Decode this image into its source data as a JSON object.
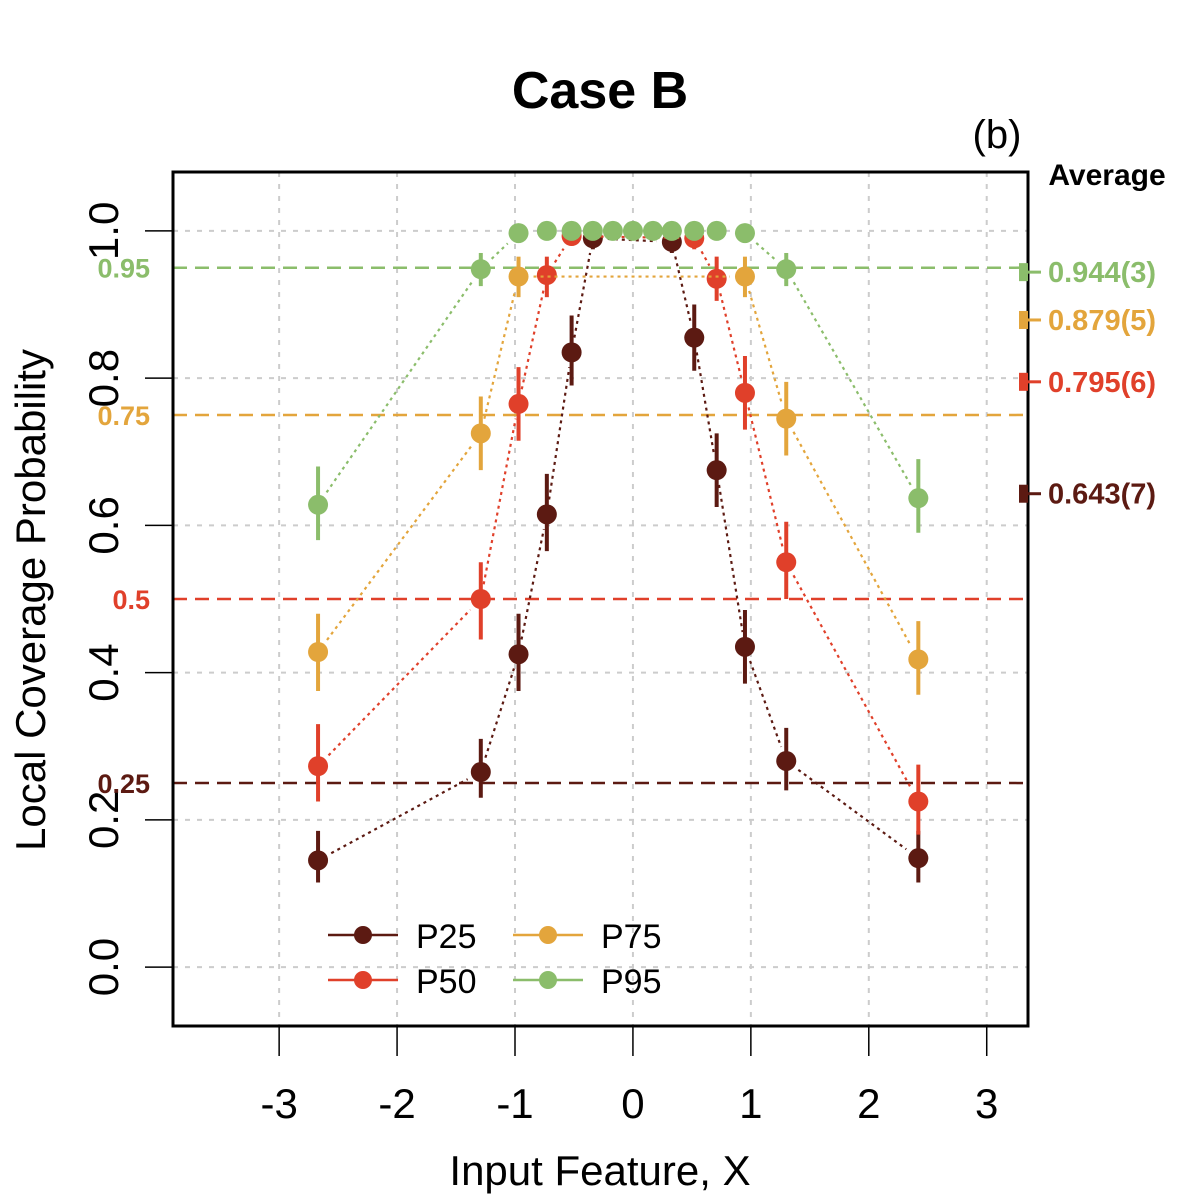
{
  "chart_data": {
    "type": "scatter",
    "title": "Case B",
    "panel_label": "(b)",
    "xlabel": "Input Feature, X",
    "ylabel": "Local Coverage Probability",
    "xlim": [
      -3.9,
      3.35
    ],
    "ylim": [
      -0.08,
      1.08
    ],
    "x_ticks": [
      -3,
      -2,
      -1,
      0,
      1,
      2,
      3
    ],
    "x_tick_labels": [
      "-3",
      "-2",
      "-1",
      "0",
      "1",
      "2",
      "3"
    ],
    "y_ticks": [
      0.0,
      0.2,
      0.4,
      0.6,
      0.8,
      1.0
    ],
    "y_tick_labels": [
      "0.0",
      "0.2",
      "0.4",
      "0.6",
      "0.8",
      "1.0"
    ],
    "grid": true,
    "average_header": "Average",
    "legend_position": "bottom-left",
    "series": [
      {
        "name": "P25",
        "color": "#5c1a12",
        "nominal": 0.25,
        "nominal_label": "0.25",
        "average": 0.643,
        "average_label": "0.643(7)",
        "points": [
          {
            "x": -2.67,
            "y": 0.145,
            "lo": 0.115,
            "hi": 0.185
          },
          {
            "x": -1.29,
            "y": 0.265,
            "lo": 0.23,
            "hi": 0.31
          },
          {
            "x": -0.97,
            "y": 0.425,
            "lo": 0.375,
            "hi": 0.48
          },
          {
            "x": -0.73,
            "y": 0.615,
            "lo": 0.565,
            "hi": 0.67
          },
          {
            "x": -0.52,
            "y": 0.835,
            "lo": 0.79,
            "hi": 0.885
          },
          {
            "x": -0.34,
            "y": 0.99,
            "lo": 0.975,
            "hi": 1.0
          },
          {
            "x": 0.33,
            "y": 0.985,
            "lo": 0.97,
            "hi": 1.0
          },
          {
            "x": 0.52,
            "y": 0.855,
            "lo": 0.81,
            "hi": 0.9
          },
          {
            "x": 0.71,
            "y": 0.675,
            "lo": 0.625,
            "hi": 0.725
          },
          {
            "x": 0.95,
            "y": 0.435,
            "lo": 0.385,
            "hi": 0.485
          },
          {
            "x": 1.3,
            "y": 0.28,
            "lo": 0.24,
            "hi": 0.325
          },
          {
            "x": 2.42,
            "y": 0.148,
            "lo": 0.115,
            "hi": 0.185
          }
        ]
      },
      {
        "name": "P50",
        "color": "#e0402a",
        "nominal": 0.5,
        "nominal_label": "0.5",
        "average": 0.795,
        "average_label": "0.795(6)",
        "points": [
          {
            "x": -2.67,
            "y": 0.273,
            "lo": 0.225,
            "hi": 0.33
          },
          {
            "x": -1.29,
            "y": 0.5,
            "lo": 0.445,
            "hi": 0.55
          },
          {
            "x": -0.97,
            "y": 0.765,
            "lo": 0.715,
            "hi": 0.815
          },
          {
            "x": -0.73,
            "y": 0.94,
            "lo": 0.91,
            "hi": 0.965
          },
          {
            "x": -0.52,
            "y": 0.993,
            "lo": 0.98,
            "hi": 1.0
          },
          {
            "x": 0.52,
            "y": 0.99,
            "lo": 0.975,
            "hi": 1.0
          },
          {
            "x": 0.71,
            "y": 0.935,
            "lo": 0.905,
            "hi": 0.965
          },
          {
            "x": 0.95,
            "y": 0.78,
            "lo": 0.73,
            "hi": 0.83
          },
          {
            "x": 1.3,
            "y": 0.55,
            "lo": 0.5,
            "hi": 0.605
          },
          {
            "x": 2.42,
            "y": 0.225,
            "lo": 0.18,
            "hi": 0.275
          }
        ]
      },
      {
        "name": "P75",
        "color": "#e3a53c",
        "nominal": 0.75,
        "nominal_label": "0.75",
        "average": 0.879,
        "average_label": "0.879(5)",
        "points": [
          {
            "x": -2.67,
            "y": 0.428,
            "lo": 0.375,
            "hi": 0.48
          },
          {
            "x": -1.29,
            "y": 0.725,
            "lo": 0.675,
            "hi": 0.775
          },
          {
            "x": -0.97,
            "y": 0.938,
            "lo": 0.91,
            "hi": 0.965
          },
          {
            "x": 0.95,
            "y": 0.938,
            "lo": 0.91,
            "hi": 0.965
          },
          {
            "x": 1.3,
            "y": 0.745,
            "lo": 0.695,
            "hi": 0.795
          },
          {
            "x": 2.42,
            "y": 0.418,
            "lo": 0.37,
            "hi": 0.47
          }
        ]
      },
      {
        "name": "P95",
        "color": "#8bbd6b",
        "nominal": 0.95,
        "nominal_label": "0.95",
        "average": 0.944,
        "average_label": "0.944(3)",
        "points": [
          {
            "x": -2.67,
            "y": 0.628,
            "lo": 0.58,
            "hi": 0.68
          },
          {
            "x": -1.29,
            "y": 0.948,
            "lo": 0.925,
            "hi": 0.97
          },
          {
            "x": -0.97,
            "y": 0.997
          },
          {
            "x": -0.73,
            "y": 1.0
          },
          {
            "x": -0.52,
            "y": 1.0
          },
          {
            "x": -0.34,
            "y": 1.0
          },
          {
            "x": -0.17,
            "y": 1.0
          },
          {
            "x": 0.0,
            "y": 1.0
          },
          {
            "x": 0.17,
            "y": 1.0
          },
          {
            "x": 0.33,
            "y": 1.0
          },
          {
            "x": 0.52,
            "y": 1.0
          },
          {
            "x": 0.71,
            "y": 1.0
          },
          {
            "x": 0.95,
            "y": 0.997
          },
          {
            "x": 1.3,
            "y": 0.948,
            "lo": 0.925,
            "hi": 0.97
          },
          {
            "x": 2.42,
            "y": 0.637,
            "lo": 0.59,
            "hi": 0.69
          }
        ]
      }
    ]
  }
}
